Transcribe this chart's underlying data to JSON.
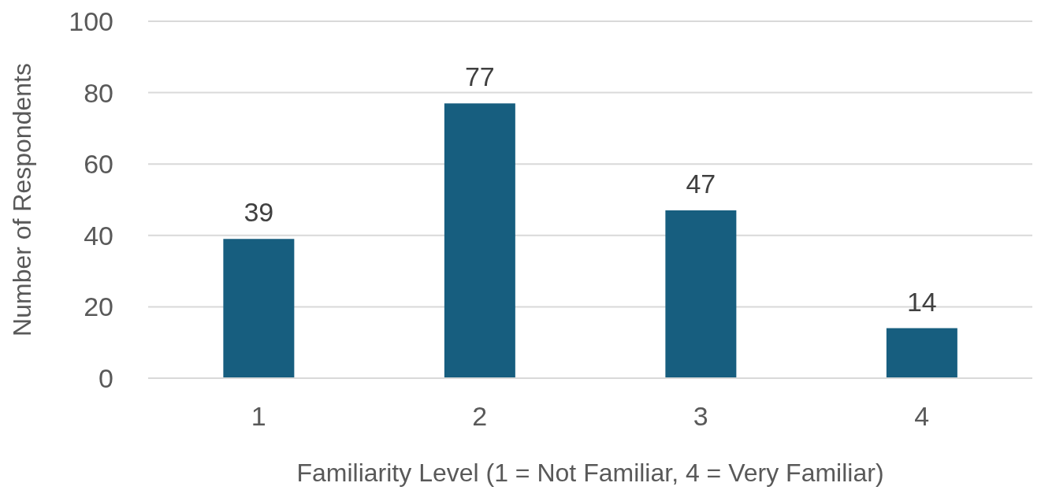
{
  "chart_data": {
    "type": "bar",
    "xlabel": "Familiarity Level (1 = Not Familiar, 4 = Very Familiar)",
    "ylabel": "Number of Respondents",
    "categories": [
      "1",
      "2",
      "3",
      "4"
    ],
    "values": [
      39,
      77,
      47,
      14
    ],
    "color": "#175e7f",
    "ylim": [
      0,
      100
    ],
    "yticks": [
      0,
      20,
      40,
      60,
      80,
      100
    ],
    "grid": "y",
    "data_labels": true
  }
}
